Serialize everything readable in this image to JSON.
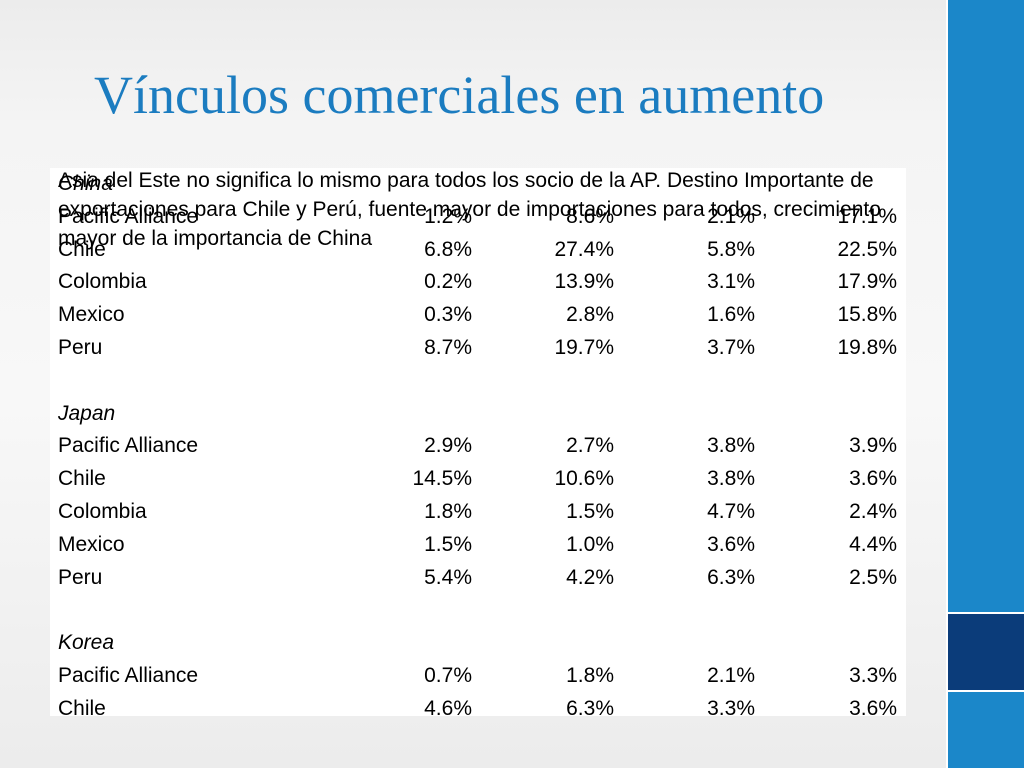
{
  "title": "Vínculos comerciales en aumento",
  "caption": "Asia del Este no significa lo mismo para todos los socio de la AP.  Destino Importante de exportaciones para Chile y Perú, fuente mayor de importaciones para todos, crecimiento mayor de la importancia de China",
  "colors": {
    "title": "#1b7cc0",
    "side_bar": "#1b87c9",
    "side_block": "#0b3c7a"
  },
  "table": {
    "rows": [
      {
        "type": "group",
        "name": "China"
      },
      {
        "type": "data",
        "name": "Pacific Alliance",
        "v1": "1.2%",
        "v2": "8.6%",
        "v3": "2.1%",
        "v4": "17.1%"
      },
      {
        "type": "data",
        "name": "Chile",
        "v1": "6.8%",
        "v2": "27.4%",
        "v3": "5.8%",
        "v4": "22.5%"
      },
      {
        "type": "data",
        "name": "Colombia",
        "v1": "0.2%",
        "v2": "13.9%",
        "v3": "3.1%",
        "v4": "17.9%"
      },
      {
        "type": "data",
        "name": "Mexico",
        "v1": "0.3%",
        "v2": "2.8%",
        "v3": "1.6%",
        "v4": "15.8%"
      },
      {
        "type": "data",
        "name": "Peru",
        "v1": "8.7%",
        "v2": "19.7%",
        "v3": "3.7%",
        "v4": "19.8%"
      },
      {
        "type": "blank"
      },
      {
        "type": "group",
        "name": "Japan"
      },
      {
        "type": "data",
        "name": "Pacific Alliance",
        "v1": "2.9%",
        "v2": "2.7%",
        "v3": "3.8%",
        "v4": "3.9%"
      },
      {
        "type": "data",
        "name": "Chile",
        "v1": "14.5%",
        "v2": "10.6%",
        "v3": "3.8%",
        "v4": "3.6%"
      },
      {
        "type": "data",
        "name": "Colombia",
        "v1": "1.8%",
        "v2": "1.5%",
        "v3": "4.7%",
        "v4": "2.4%"
      },
      {
        "type": "data",
        "name": "Mexico",
        "v1": "1.5%",
        "v2": "1.0%",
        "v3": "3.6%",
        "v4": "4.4%"
      },
      {
        "type": "data",
        "name": "Peru",
        "v1": "5.4%",
        "v2": "4.2%",
        "v3": "6.3%",
        "v4": "2.5%"
      },
      {
        "type": "blank"
      },
      {
        "type": "group",
        "name": "Korea"
      },
      {
        "type": "data",
        "name": "Pacific Alliance",
        "v1": "0.7%",
        "v2": "1.8%",
        "v3": "2.1%",
        "v4": "3.3%"
      },
      {
        "type": "data",
        "name": "Chile",
        "v1": "4.6%",
        "v2": "6.3%",
        "v3": "3.3%",
        "v4": "3.6%"
      }
    ]
  }
}
